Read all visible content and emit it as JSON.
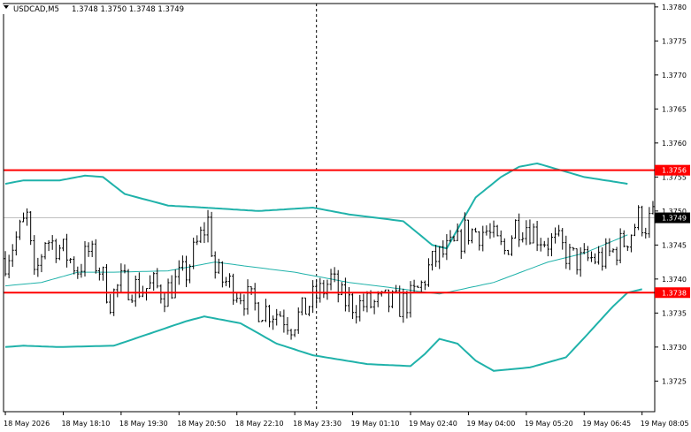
{
  "window": {
    "title_symbol": "USDCAD,M5",
    "title_ohlc": "1.3748 1.3750 1.3748 1.3749",
    "menu_arrow_icon": "triangle-down-icon"
  },
  "chart_data": {
    "type": "candlestick",
    "symbol": "USDCAD",
    "timeframe": "M5",
    "ylim": [
      1.37205,
      1.37805
    ],
    "y_ticks": [
      "1.3780",
      "1.3775",
      "1.3770",
      "1.3765",
      "1.3760",
      "1.3755",
      "1.3750",
      "1.3745",
      "1.3740",
      "1.3735",
      "1.3730",
      "1.3725"
    ],
    "y_tick_values": [
      1.378,
      1.3775,
      1.377,
      1.3765,
      1.376,
      1.3755,
      1.375,
      1.3745,
      1.374,
      1.3735,
      1.373,
      1.3725
    ],
    "x_ticks": [
      "18 May 2026",
      "18 May 18:10",
      "18 May 19:30",
      "18 May 20:50",
      "18 May 22:10",
      "18 May 23:30",
      "19 May 01:10",
      "19 May 02:40",
      "19 May 04:00",
      "19 May 05:20",
      "19 May 06:45",
      "19 May 08:05"
    ],
    "bar_count": 180,
    "x_tick_bars": [
      0,
      16,
      32,
      48,
      64,
      80,
      96,
      112,
      128,
      144,
      160,
      176
    ],
    "separator_bar": 86,
    "horizontal_lines": [
      {
        "price": 1.3756,
        "label": "1.3756",
        "color": "#ff0000"
      },
      {
        "price": 1.3738,
        "label": "1.3738",
        "color": "#ff0000"
      }
    ],
    "current_price": {
      "price": 1.3749,
      "label": "1.3749"
    },
    "bands": {
      "color": "#20b2aa",
      "upper": [
        [
          0,
          1.3754
        ],
        [
          5,
          1.37545
        ],
        [
          15,
          1.37545
        ],
        [
          22,
          1.37552
        ],
        [
          27,
          1.3755
        ],
        [
          33,
          1.37525
        ],
        [
          45,
          1.37508
        ],
        [
          55,
          1.37505
        ],
        [
          70,
          1.375
        ],
        [
          85,
          1.37505
        ],
        [
          95,
          1.37495
        ],
        [
          110,
          1.37485
        ],
        [
          118,
          1.3745
        ],
        [
          122,
          1.37445
        ],
        [
          130,
          1.3752
        ],
        [
          137,
          1.3755
        ],
        [
          142,
          1.37565
        ],
        [
          147,
          1.3757
        ],
        [
          160,
          1.3755
        ],
        [
          172,
          1.3754
        ]
      ],
      "middle": [
        [
          0,
          1.3739
        ],
        [
          10,
          1.37395
        ],
        [
          20,
          1.3741
        ],
        [
          30,
          1.3741
        ],
        [
          45,
          1.37412
        ],
        [
          58,
          1.37425
        ],
        [
          65,
          1.3742
        ],
        [
          80,
          1.3741
        ],
        [
          95,
          1.37395
        ],
        [
          110,
          1.37385
        ],
        [
          120,
          1.37378
        ],
        [
          135,
          1.37395
        ],
        [
          150,
          1.37425
        ],
        [
          160,
          1.37438
        ],
        [
          172,
          1.37465
        ]
      ],
      "lower": [
        [
          0,
          1.373
        ],
        [
          5,
          1.37302
        ],
        [
          15,
          1.373
        ],
        [
          30,
          1.37302
        ],
        [
          40,
          1.3732
        ],
        [
          50,
          1.37338
        ],
        [
          55,
          1.37345
        ],
        [
          65,
          1.37335
        ],
        [
          75,
          1.37305
        ],
        [
          85,
          1.37288
        ],
        [
          100,
          1.37275
        ],
        [
          112,
          1.37272
        ],
        [
          116,
          1.3729
        ],
        [
          120,
          1.37312
        ],
        [
          125,
          1.37305
        ],
        [
          130,
          1.3728
        ],
        [
          135,
          1.37265
        ],
        [
          145,
          1.3727
        ],
        [
          155,
          1.37285
        ],
        [
          162,
          1.37325
        ],
        [
          168,
          1.3736
        ],
        [
          172,
          1.3738
        ],
        [
          176,
          1.37385
        ]
      ]
    },
    "candles": {
      "up_color": "#000000",
      "down_color": "#000000",
      "close_path": [
        [
          0,
          1.3743
        ],
        [
          3,
          1.3746
        ],
        [
          6,
          1.3749
        ],
        [
          8,
          1.37395
        ],
        [
          11,
          1.3746
        ],
        [
          14,
          1.3745
        ],
        [
          17,
          1.37435
        ],
        [
          20,
          1.37415
        ],
        [
          23,
          1.3744
        ],
        [
          26,
          1.37415
        ],
        [
          29,
          1.3737
        ],
        [
          32,
          1.37395
        ],
        [
          35,
          1.3739
        ],
        [
          38,
          1.37385
        ],
        [
          41,
          1.3739
        ],
        [
          44,
          1.3738
        ],
        [
          47,
          1.37395
        ],
        [
          50,
          1.3741
        ],
        [
          53,
          1.3745
        ],
        [
          56,
          1.37485
        ],
        [
          58,
          1.3741
        ],
        [
          60,
          1.37398
        ],
        [
          63,
          1.3739
        ],
        [
          66,
          1.37375
        ],
        [
          69,
          1.3736
        ],
        [
          72,
          1.37355
        ],
        [
          76,
          1.3735
        ],
        [
          79,
          1.37335
        ],
        [
          82,
          1.3735
        ],
        [
          85,
          1.3737
        ],
        [
          88,
          1.37385
        ],
        [
          90,
          1.374
        ],
        [
          93,
          1.3737
        ],
        [
          97,
          1.37362
        ],
        [
          101,
          1.37362
        ],
        [
          105,
          1.37365
        ],
        [
          109,
          1.37362
        ],
        [
          112,
          1.3737
        ],
        [
          115,
          1.3739
        ],
        [
          117,
          1.37415
        ],
        [
          119,
          1.3743
        ],
        [
          122,
          1.3744
        ],
        [
          125,
          1.3745
        ],
        [
          127,
          1.3747
        ],
        [
          130,
          1.3747
        ],
        [
          133,
          1.3747
        ],
        [
          136,
          1.3745
        ],
        [
          138,
          1.3744
        ],
        [
          141,
          1.3748
        ],
        [
          144,
          1.3748
        ],
        [
          147,
          1.37465
        ],
        [
          150,
          1.37455
        ],
        [
          153,
          1.3745
        ],
        [
          156,
          1.37432
        ],
        [
          159,
          1.37425
        ],
        [
          162,
          1.3743
        ],
        [
          165,
          1.3743
        ],
        [
          168,
          1.3744
        ],
        [
          171,
          1.37455
        ],
        [
          173,
          1.3747
        ],
        [
          175,
          1.3749
        ],
        [
          177,
          1.3748
        ],
        [
          179,
          1.3749
        ]
      ]
    }
  }
}
